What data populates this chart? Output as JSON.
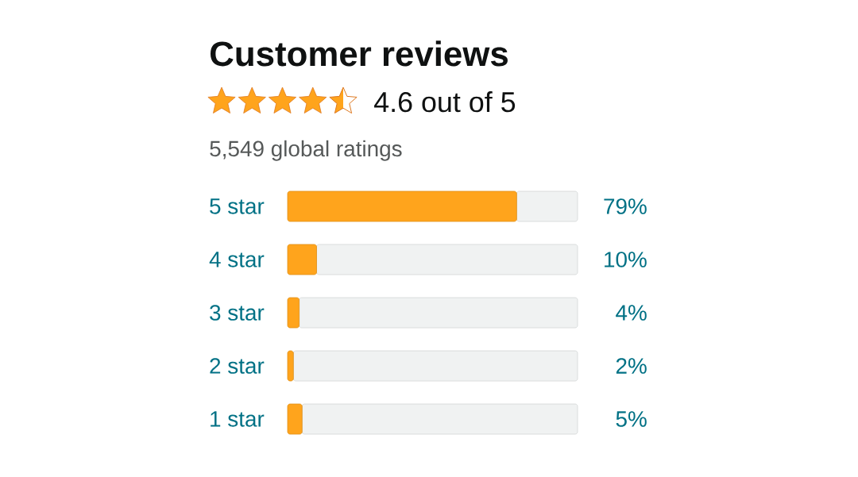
{
  "chart_data": {
    "type": "bar",
    "orientation": "horizontal",
    "stacked": true,
    "title": "Customer reviews",
    "subtitle": "4.6 out of 5",
    "annotations": [
      "5,549 global ratings"
    ],
    "categories": [
      "5 star",
      "4 star",
      "3 star",
      "2 star",
      "1 star"
    ],
    "series": [
      {
        "color": "#ffa41c",
        "values": [
          79,
          10,
          4,
          2,
          5
        ],
        "value_labels": [
          "79%",
          "10%",
          "4%",
          "2%",
          "5%"
        ]
      },
      {
        "color": "#f0f2f2",
        "values": [
          21,
          90,
          96,
          98,
          95
        ]
      }
    ],
    "xlim": [
      0,
      100
    ],
    "tick_labels": "y"
  }
}
